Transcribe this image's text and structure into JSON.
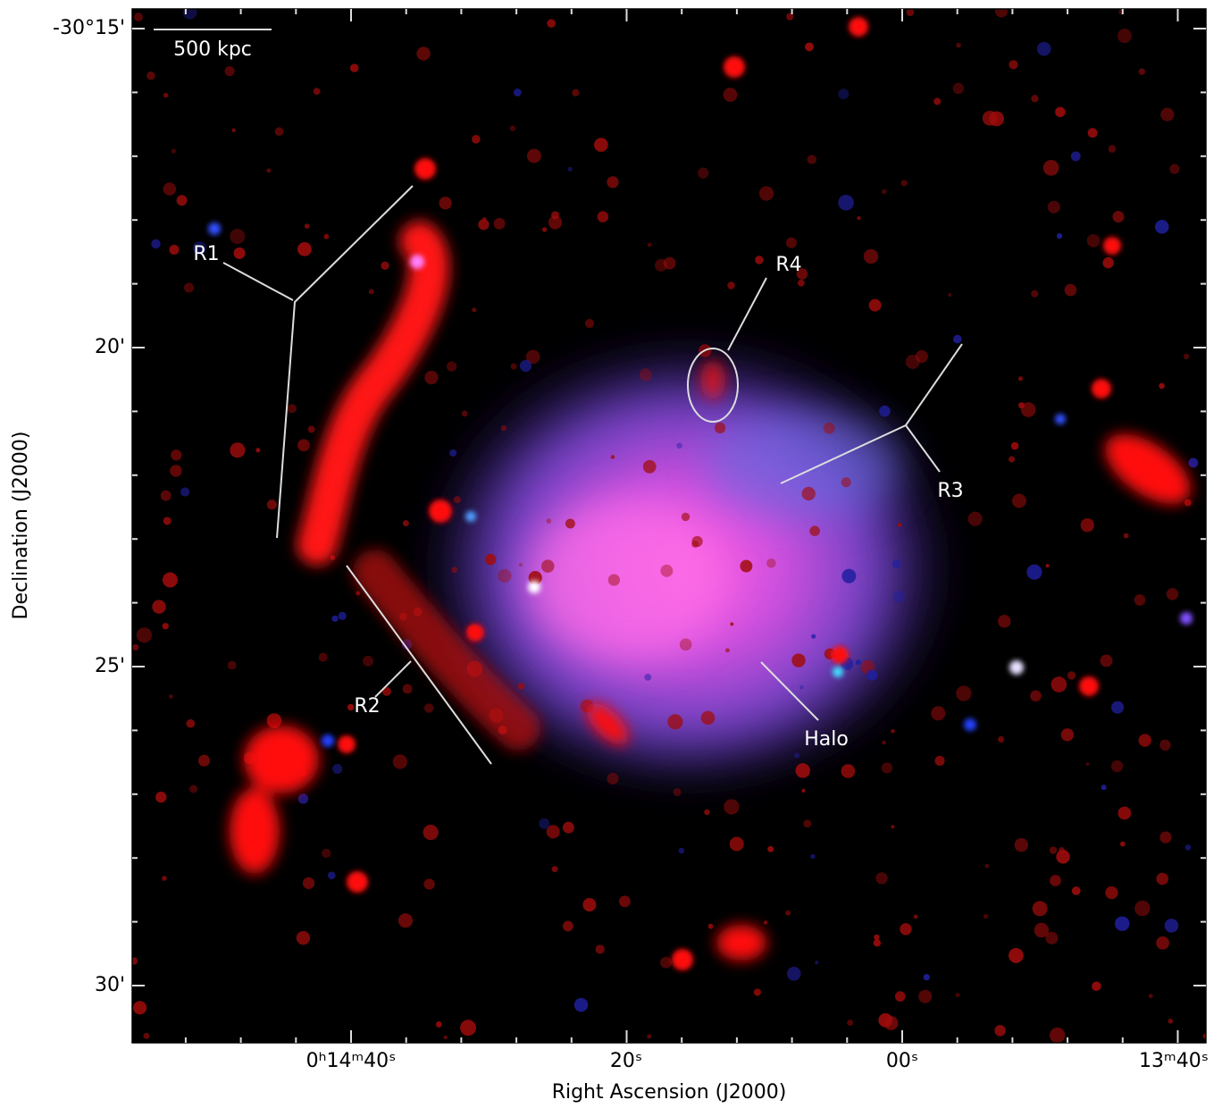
{
  "axes": {
    "x_label": "Right Ascension (J2000)",
    "y_label": "Declination (J2000)",
    "x_ticks": [
      "0ʰ14ᵐ40ˢ",
      "20ˢ",
      "00ˢ",
      "13ᵐ40ˢ"
    ],
    "y_ticks": [
      "-30°15'",
      "20'",
      "25'",
      "30'"
    ]
  },
  "scale_bar": "500 kpc",
  "annotations": [
    "R1",
    "R2",
    "R3",
    "R4",
    "Halo"
  ]
}
